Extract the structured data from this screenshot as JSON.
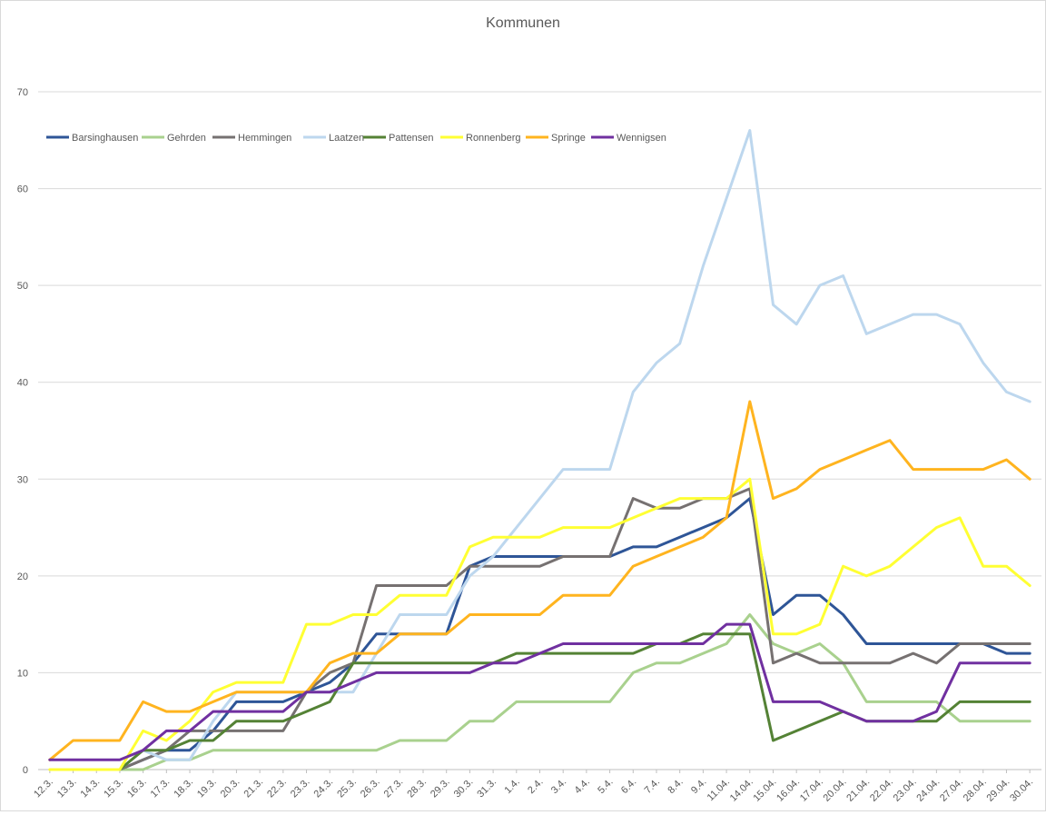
{
  "chart_data": {
    "type": "line",
    "title": "Kommunen",
    "xlabel": "",
    "ylabel": "",
    "ylim": [
      0,
      70
    ],
    "yticks": [
      0,
      10,
      20,
      30,
      40,
      50,
      60,
      70
    ],
    "grid": true,
    "legend_position": "top-left",
    "categories": [
      "12.3.",
      "13.3.",
      "14.3.",
      "15.3.",
      "16.3.",
      "17.3.",
      "18.3.",
      "19.3.",
      "20.3.",
      "21.3.",
      "22.3.",
      "23.3.",
      "24.3.",
      "25.3.",
      "26.3.",
      "27.3.",
      "28.3.",
      "29.3.",
      "30.3.",
      "31.3.",
      "1.4.",
      "2.4.",
      "3.4.",
      "4.4.",
      "5.4.",
      "6.4.",
      "7.4.",
      "8.4.",
      "9.4.",
      "11.04.",
      "14.04.",
      "15.04.",
      "16.04.",
      "17.04.",
      "20.04.",
      "21.04.",
      "22.04.",
      "23.04.",
      "24.04.",
      "27.04.",
      "28.04.",
      "29.04.",
      "30.04."
    ],
    "series": [
      {
        "name": "Barsinghausen",
        "color": "#2e5597",
        "values": [
          null,
          null,
          null,
          0,
          1,
          2,
          2,
          4,
          7,
          7,
          7,
          8,
          9,
          11,
          14,
          14,
          14,
          14,
          21,
          22,
          22,
          22,
          22,
          22,
          22,
          23,
          23,
          24,
          25,
          26,
          28,
          16,
          18,
          18,
          16,
          13,
          13,
          13,
          13,
          13,
          13,
          12,
          12
        ]
      },
      {
        "name": "Gehrden",
        "color": "#a9d18e",
        "values": [
          null,
          null,
          null,
          0,
          0,
          1,
          1,
          2,
          2,
          2,
          2,
          2,
          2,
          2,
          2,
          3,
          3,
          3,
          5,
          5,
          7,
          7,
          7,
          7,
          7,
          10,
          11,
          11,
          12,
          13,
          16,
          13,
          12,
          13,
          11,
          7,
          7,
          7,
          7,
          5,
          5,
          5,
          5
        ]
      },
      {
        "name": "Hemmingen",
        "color": "#767171",
        "values": [
          null,
          null,
          null,
          0,
          1,
          2,
          4,
          4,
          4,
          4,
          4,
          8,
          10,
          11,
          19,
          19,
          19,
          19,
          21,
          21,
          21,
          21,
          22,
          22,
          22,
          28,
          27,
          27,
          28,
          28,
          29,
          11,
          12,
          11,
          11,
          11,
          11,
          12,
          11,
          13,
          13,
          13,
          13
        ]
      },
      {
        "name": "Laatzen",
        "color": "#bdd7ee",
        "values": [
          null,
          null,
          null,
          0,
          2,
          1,
          1,
          5,
          8,
          8,
          8,
          8,
          8,
          8,
          12,
          16,
          16,
          16,
          20,
          22,
          25,
          28,
          31,
          31,
          31,
          39,
          42,
          44,
          52,
          59,
          66,
          48,
          46,
          50,
          51,
          45,
          46,
          47,
          47,
          46,
          42,
          39,
          38
        ]
      },
      {
        "name": "Pattensen",
        "color": "#548235",
        "values": [
          null,
          null,
          null,
          0,
          2,
          2,
          3,
          3,
          5,
          5,
          5,
          6,
          7,
          11,
          11,
          11,
          11,
          11,
          11,
          11,
          12,
          12,
          12,
          12,
          12,
          12,
          13,
          13,
          14,
          14,
          14,
          3,
          4,
          5,
          6,
          5,
          5,
          5,
          5,
          7,
          7,
          7,
          7
        ]
      },
      {
        "name": "Ronnenberg",
        "color": "#ffff33",
        "values": [
          0,
          0,
          0,
          0,
          4,
          3,
          5,
          8,
          9,
          9,
          9,
          15,
          15,
          16,
          16,
          18,
          18,
          18,
          23,
          24,
          24,
          24,
          25,
          25,
          25,
          26,
          27,
          28,
          28,
          28,
          30,
          14,
          14,
          15,
          21,
          20,
          21,
          23,
          25,
          26,
          21,
          21,
          19
        ]
      },
      {
        "name": "Springe",
        "color": "#ffb41f",
        "values": [
          1,
          3,
          3,
          3,
          7,
          6,
          6,
          7,
          8,
          8,
          8,
          8,
          11,
          12,
          12,
          14,
          14,
          14,
          16,
          16,
          16,
          16,
          18,
          18,
          18,
          21,
          22,
          23,
          24,
          26,
          38,
          28,
          29,
          31,
          32,
          33,
          34,
          31,
          31,
          31,
          31,
          32,
          30
        ]
      },
      {
        "name": "Wennigsen",
        "color": "#7030a0",
        "values": [
          1,
          1,
          1,
          1,
          2,
          4,
          4,
          6,
          6,
          6,
          6,
          8,
          8,
          9,
          10,
          10,
          10,
          10,
          10,
          11,
          11,
          12,
          13,
          13,
          13,
          13,
          13,
          13,
          13,
          15,
          15,
          7,
          7,
          7,
          6,
          5,
          5,
          5,
          6,
          11,
          11,
          11,
          11
        ]
      }
    ]
  }
}
